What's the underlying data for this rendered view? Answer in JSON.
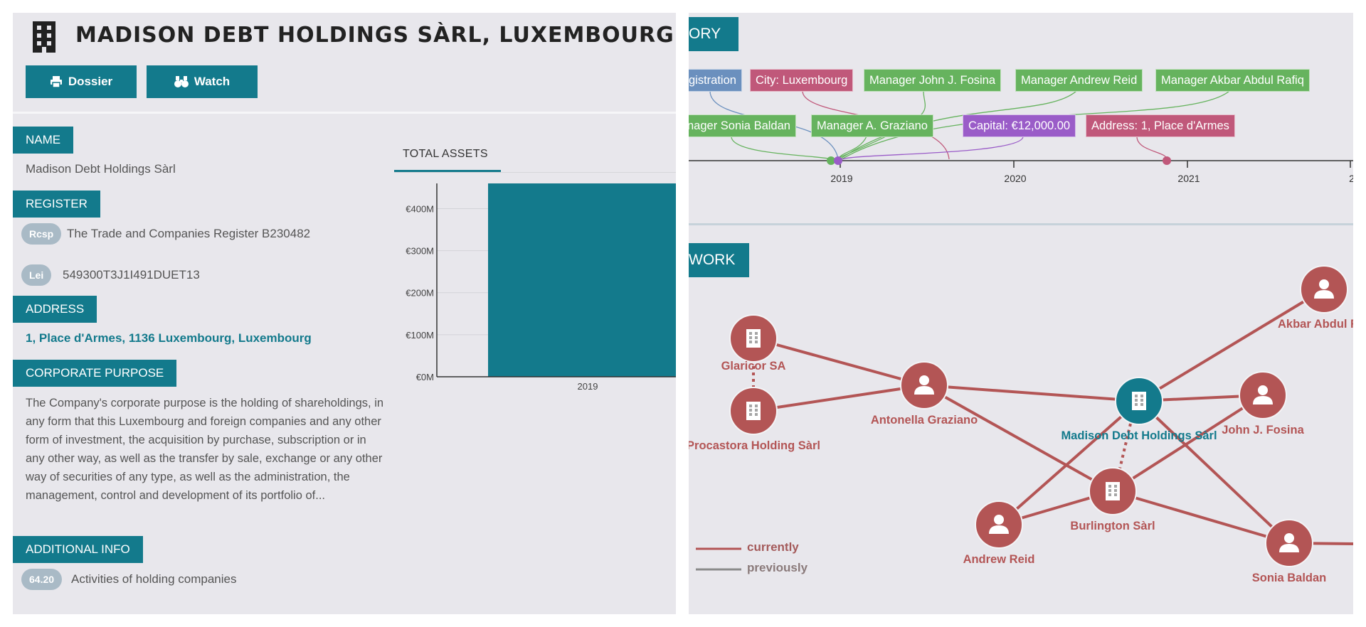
{
  "header": {
    "title": "MADISON DEBT HOLDINGS SÀRL, LUXEMBOURG",
    "dossier_label": "Dossier",
    "watch_label": "Watch"
  },
  "name": {
    "label": "NAME",
    "value": "Madison Debt Holdings Sàrl"
  },
  "register": {
    "label": "REGISTER",
    "items": [
      {
        "tag": "Rcsp",
        "value": "The Trade and Companies Register B230482"
      },
      {
        "tag": "Lei",
        "value": "549300T3J1I491DUET13"
      }
    ]
  },
  "address": {
    "label": "ADDRESS",
    "value": "1, Place d'Armes, 1136 Luxembourg, Luxembourg"
  },
  "purpose": {
    "label": "CORPORATE PURPOSE",
    "text": "The Company's corporate purpose is the holding of shareholdings, in any form that this Luxembourg and foreign companies and any other form of investment, the acquisition by purchase, subscription or in any other way, as well as the transfer by sale, exchange or any other way of securities of any type, as well as the administration, the management, control and development of its portfolio of..."
  },
  "additional": {
    "label": "ADDITIONAL INFO",
    "code": "64.20",
    "value": "Activities of holding companies"
  },
  "chart_tab": "TOTAL ASSETS",
  "chart_data": {
    "type": "bar",
    "title": "TOTAL ASSETS",
    "categories": [
      "2019"
    ],
    "values": [
      460
    ],
    "unit": "€M",
    "ylim": [
      0,
      460
    ],
    "yticks": [
      "€0M",
      "€100M",
      "€200M",
      "€300M",
      "€400M"
    ],
    "ytick_values": [
      0,
      100,
      200,
      300,
      400
    ],
    "color": "#137a8c"
  },
  "history": {
    "tag": "ORY",
    "events_row1": [
      {
        "label": "gistration",
        "kind": "blue"
      },
      {
        "label": "City: Luxembourg",
        "kind": "pink"
      },
      {
        "label": "Manager John J. Fosina",
        "kind": "green"
      },
      {
        "label": "Manager Andrew Reid",
        "kind": "green"
      },
      {
        "label": "Manager Akbar Abdul Rafiq",
        "kind": "green"
      }
    ],
    "events_row2": [
      {
        "label": "nager Sonia Baldan",
        "kind": "green"
      },
      {
        "label": "Manager A. Graziano",
        "kind": "green"
      },
      {
        "label": "Capital: €12,000.00",
        "kind": "purple"
      },
      {
        "label": "Address: 1, Place d'Armes",
        "kind": "pink"
      }
    ],
    "years": [
      "2019",
      "2020",
      "2021",
      "2"
    ]
  },
  "network": {
    "tag": "WORK",
    "nodes": [
      {
        "label": "Glaricor SA"
      },
      {
        "label": "Procastora Holding Sàrl"
      },
      {
        "label": "Antonella Graziano"
      },
      {
        "label": "Madison Debt Holdings Sàrl"
      },
      {
        "label": "John J. Fosina"
      },
      {
        "label": "Akbar Abdul R"
      },
      {
        "label": "Burlington Sàrl"
      },
      {
        "label": "Andrew Reid"
      },
      {
        "label": "Sonia Baldan"
      }
    ],
    "legend": {
      "current": "currently",
      "previous": "previously"
    }
  },
  "colors": {
    "accent": "#137a8c",
    "edge": "#b35555",
    "panel": "#e8e7ec"
  }
}
